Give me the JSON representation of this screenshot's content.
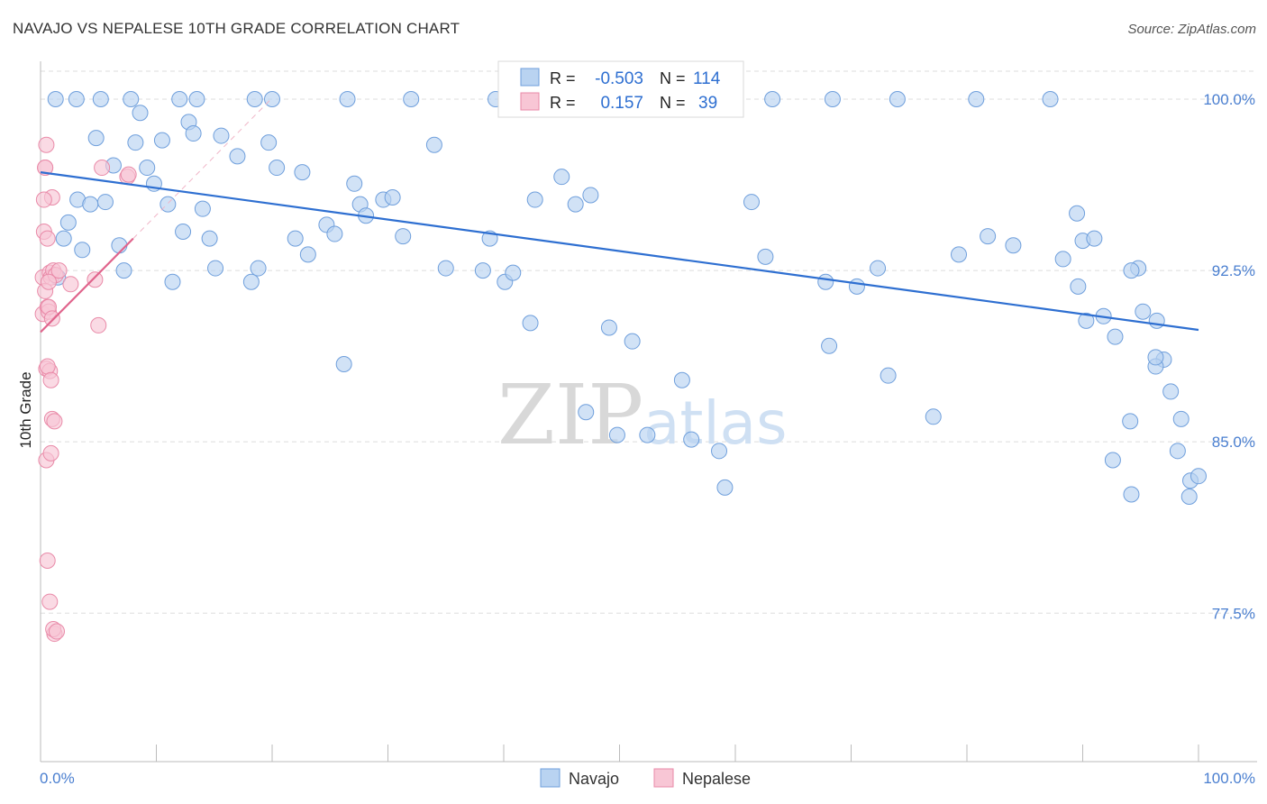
{
  "header": {
    "title": "NAVAJO VS NEPALESE 10TH GRADE CORRELATION CHART",
    "source": "Source: ZipAtlas.com"
  },
  "watermark": {
    "zip": "ZIP",
    "atlas": "atlas"
  },
  "stats": [
    {
      "r_label": "R =",
      "r_value": "-0.503",
      "n_label": "N =",
      "n_value": "114",
      "color": "#7aaee8"
    },
    {
      "r_label": "R =",
      "r_value": "0.157",
      "n_label": "N =",
      "n_value": "39",
      "color": "#f2a0b8"
    }
  ],
  "legend": [
    {
      "label": "Navajo",
      "color": "#7aaee8"
    },
    {
      "label": "Nepalese",
      "color": "#f2a0b8"
    }
  ],
  "colors": {
    "navajo_fill": "#b9d3f1",
    "navajo_stroke": "#6f9fdc",
    "navajo_line": "#2e6fd1",
    "nepalese_fill": "#f8c6d5",
    "nepalese_stroke": "#e98aa8",
    "nepalese_line": "#e0648c",
    "tick_label": "#4a7fd0",
    "grid": "#dddddd"
  },
  "chart_data": {
    "type": "scatter",
    "title": "NAVAJO VS NEPALESE 10TH GRADE CORRELATION CHART",
    "xlabel": "",
    "ylabel": "10th Grade",
    "xlim": [
      0,
      100
    ],
    "ylim": [
      71.0,
      101.5
    ],
    "x_tick_labels": [
      "0.0%",
      "100.0%"
    ],
    "y_ticks": [
      77.5,
      85.0,
      92.5,
      100.0
    ],
    "y_tick_labels": [
      "77.5%",
      "85.0%",
      "92.5%",
      "100.0%"
    ],
    "grid": true,
    "legend_position": "bottom-center",
    "series": [
      {
        "name": "Navajo",
        "trend": {
          "x": [
            0,
            100
          ],
          "y": [
            96.8,
            89.9
          ],
          "style": "solid"
        },
        "x": [
          1.5,
          2.0,
          2.4,
          3.2,
          3.6,
          4.3,
          4.8,
          5.6,
          6.3,
          6.8,
          7.2,
          8.2,
          8.6,
          9.2,
          9.8,
          10.5,
          11.0,
          11.4,
          12.3,
          12.8,
          13.2,
          14.0,
          14.6,
          15.1,
          15.6,
          17.0,
          18.2,
          18.8,
          19.7,
          20.4,
          22.0,
          22.6,
          23.1,
          24.7,
          25.4,
          26.2,
          27.1,
          27.6,
          28.1,
          29.6,
          30.4,
          31.3,
          34.0,
          35.0,
          38.2,
          38.8,
          40.1,
          40.8,
          42.3,
          42.7,
          45.0,
          46.2,
          47.1,
          47.5,
          49.1,
          49.8,
          51.1,
          52.4,
          55.4,
          56.2,
          58.6,
          59.1,
          61.4,
          62.6,
          67.8,
          68.1,
          70.5,
          72.3,
          73.2,
          77.1,
          79.3,
          81.8,
          84.0,
          89.5,
          89.6,
          90.3,
          91.8,
          92.8,
          92.6,
          94.1,
          94.2,
          94.8,
          94.2,
          95.2,
          96.4,
          97.0,
          96.3,
          97.6,
          98.5,
          98.2,
          99.3,
          99.2,
          100.0,
          1.3,
          3.1,
          5.2,
          7.8,
          12.0,
          13.5,
          18.5,
          20.0,
          26.5,
          32.0,
          39.3,
          45.6,
          55.0,
          58.0,
          63.2,
          68.4,
          74.0,
          80.8,
          87.2,
          88.3,
          90.0,
          91.0,
          96.3
        ],
        "y": [
          92.2,
          93.9,
          94.6,
          95.6,
          93.4,
          95.4,
          98.3,
          95.5,
          97.1,
          93.6,
          92.5,
          98.1,
          99.4,
          97.0,
          96.3,
          98.2,
          95.4,
          92.0,
          94.2,
          99.0,
          98.5,
          95.2,
          93.9,
          92.6,
          98.4,
          97.5,
          92.0,
          92.6,
          98.1,
          97.0,
          93.9,
          96.8,
          93.2,
          94.5,
          94.1,
          88.4,
          96.3,
          95.4,
          94.9,
          95.6,
          95.7,
          94.0,
          98.0,
          92.6,
          92.5,
          93.9,
          92.0,
          92.4,
          90.2,
          95.6,
          96.6,
          95.4,
          86.3,
          95.8,
          90.0,
          85.3,
          89.4,
          85.3,
          87.7,
          85.1,
          84.6,
          83.0,
          95.5,
          93.1,
          92.0,
          89.2,
          91.8,
          92.6,
          87.9,
          86.1,
          93.2,
          94.0,
          93.6,
          95.0,
          91.8,
          90.3,
          90.5,
          89.6,
          84.2,
          85.9,
          82.7,
          92.6,
          92.5,
          90.7,
          90.3,
          88.6,
          88.3,
          87.2,
          86.0,
          84.6,
          83.3,
          82.6,
          83.5,
          100.0,
          100.0,
          100.0,
          100.0,
          100.0,
          100.0,
          100.0,
          100.0,
          100.0,
          100.0,
          100.0,
          100.0,
          100.0,
          100.0,
          100.0,
          100.0,
          100.0,
          100.0,
          100.0,
          93.0,
          93.8,
          93.9,
          88.7
        ]
      },
      {
        "name": "Nepalese",
        "trend": {
          "x": [
            0,
            8.0
          ],
          "y": [
            89.8,
            93.9
          ],
          "style": "solid"
        },
        "x": [
          0.2,
          0.3,
          0.4,
          0.5,
          0.6,
          0.8,
          0.9,
          1.0,
          1.1,
          1.3,
          0.2,
          0.4,
          0.6,
          0.7,
          0.5,
          0.8,
          1.0,
          0.3,
          0.6,
          0.9,
          1.2,
          0.4,
          0.7,
          0.5,
          0.9,
          1.2,
          0.6,
          0.8,
          1.1,
          1.4,
          1.6,
          0.7,
          1.0,
          2.6,
          4.7,
          5.0,
          5.3,
          7.5,
          7.6
        ],
        "y": [
          92.2,
          94.2,
          97.0,
          98.0,
          93.9,
          92.4,
          92.2,
          95.7,
          92.5,
          92.3,
          90.6,
          91.6,
          90.9,
          90.7,
          88.2,
          88.1,
          86.0,
          95.6,
          88.3,
          87.7,
          85.9,
          97.0,
          92.0,
          84.2,
          84.5,
          76.6,
          79.8,
          78.0,
          76.8,
          76.7,
          92.5,
          90.9,
          90.4,
          91.9,
          92.1,
          90.1,
          97.0,
          96.6,
          96.7
        ]
      }
    ]
  }
}
